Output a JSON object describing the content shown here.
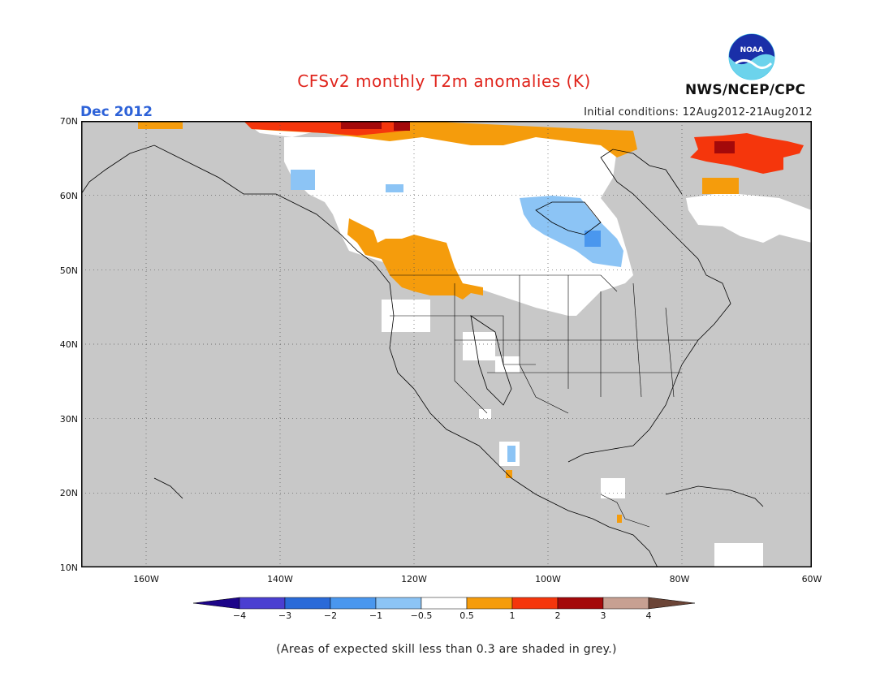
{
  "title": "CFSv2 monthly T2m anomalies (K)",
  "valid_month": "Dec 2012",
  "initial_conditions": "Initial conditions: 12Aug2012-21Aug2012",
  "agency": "NWS/NCEP/CPC",
  "logo_text": "NOAA",
  "footnote": "(Areas of expected skill less than 0.3 are shaded in grey.)",
  "map_colors": {
    "low_skill_grey": "#c8c8c8",
    "neutral_white": "#ffffff",
    "border": "#000000"
  },
  "lat_labels": [
    "70N",
    "60N",
    "50N",
    "40N",
    "30N",
    "20N",
    "10N"
  ],
  "lon_labels": [
    "160W",
    "140W",
    "120W",
    "100W",
    "80W",
    "60W"
  ],
  "colorbar": {
    "tick_labels": [
      "−4",
      "−3",
      "−2",
      "−1",
      "−0.5",
      "0.5",
      "1",
      "2",
      "3",
      "4"
    ],
    "colors": [
      "#1d0589",
      "#4b3fd1",
      "#2a6ad8",
      "#4a97ee",
      "#8cc4f5",
      "#ffffff",
      "#f59c0c",
      "#f5360c",
      "#a4090a",
      "#c7a092",
      "#6b4436"
    ]
  }
}
